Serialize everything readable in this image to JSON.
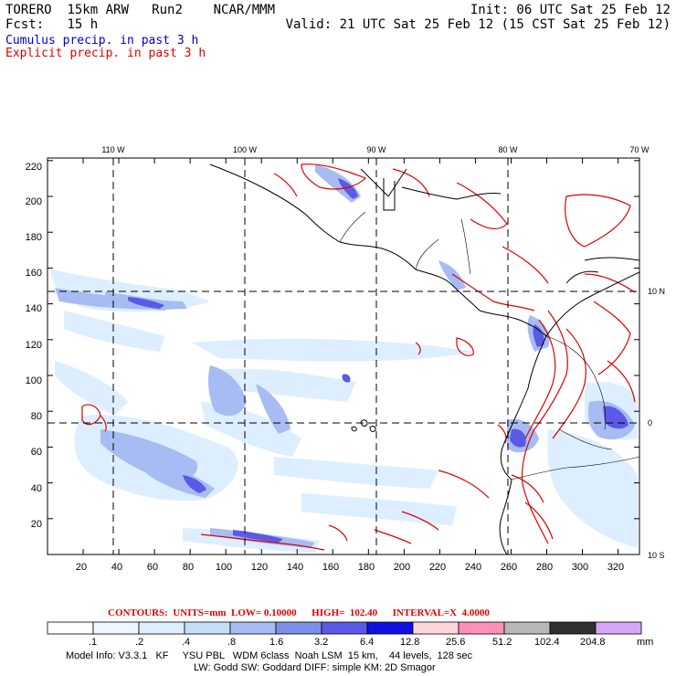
{
  "header": {
    "model": "TORERO",
    "resolution": "15km ARW",
    "run": "Run2",
    "org": "NCAR/MMM",
    "init": "Init: 06 UTC Sat 25 Feb 12",
    "fcst_label": "Fcst:",
    "fcst_value": "15 h",
    "valid": "Valid: 21 UTC Sat 25 Feb 12 (15 CST Sat 25 Feb 12)",
    "cumulus_label": "Cumulus precip. in past 3 h",
    "explicit_label": "Explicit precip. in past 3 h",
    "cumulus_color": "#0000cc",
    "explicit_color": "#e00000"
  },
  "axes": {
    "top_longitudes": [
      "110 W",
      "100 W",
      "90 W",
      "80 W",
      "70 W"
    ],
    "right_latitudes": [
      "10 N",
      "0",
      "10 S"
    ],
    "left_ticks": [
      "220",
      "200",
      "180",
      "160",
      "140",
      "120",
      "100",
      "80",
      "60",
      "40",
      "20"
    ],
    "bottom_ticks": [
      "20",
      "40",
      "60",
      "80",
      "100",
      "120",
      "140",
      "160",
      "180",
      "200",
      "220",
      "240",
      "260",
      "280",
      "300",
      "320"
    ]
  },
  "contours": {
    "text": "CONTOURS:  UNITS=mm  LOW= 0.10000      HIGH=  102.40      INTERVAL=X  4.0000"
  },
  "colorbar": {
    "unit": "mm",
    "labels": [
      ".1",
      ".2",
      ".4",
      ".8",
      "1.6",
      "3.2",
      "6.4",
      "12.8",
      "25.6",
      "51.2",
      "102.4",
      "204.8"
    ],
    "colors": [
      "#ffffff",
      "#eef6ff",
      "#dceeff",
      "#c4defa",
      "#a6bcf2",
      "#7d8ee8",
      "#5a5ae6",
      "#1010e0",
      "#ffd6dc",
      "#ff8fb8",
      "#b8b8b8",
      "#303030",
      "#d4a6f4"
    ]
  },
  "model_info": {
    "line1": "Model Info: V3.3.1   KF     YSU PBL   WDM 6class  Noah LSM  15 km,    44 levels,  128 sec",
    "line2": "LW: Godd SW: Goddard DIFF: simple KM: 2D Smagor"
  }
}
